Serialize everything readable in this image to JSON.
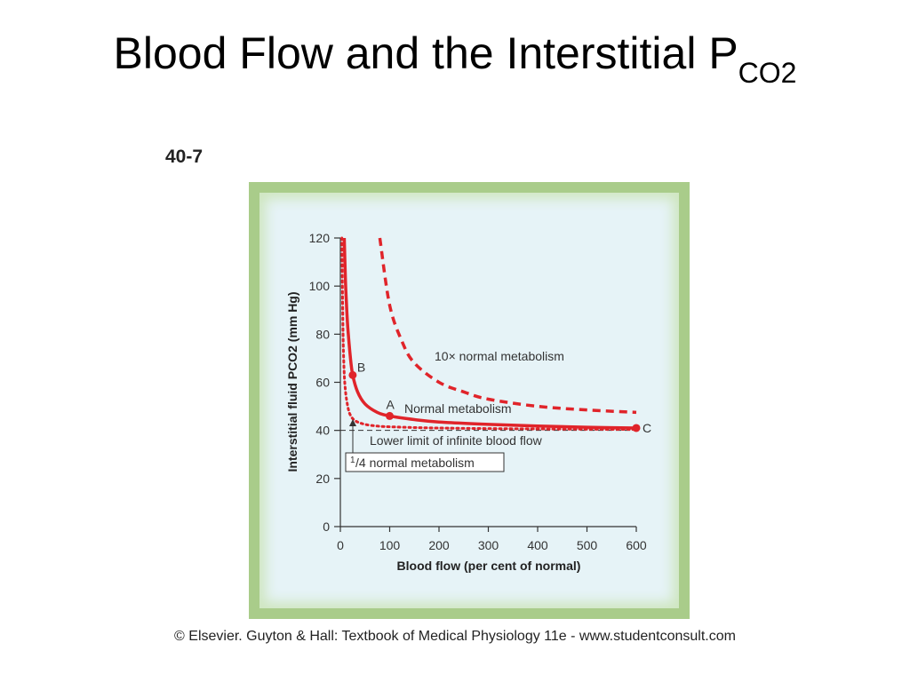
{
  "slide": {
    "title_main": "Blood Flow and the Interstitial P",
    "title_sub": "CO2",
    "figure_label": "40-7",
    "caption": "© Elsevier. Guyton & Hall: Textbook of Medical Physiology 11e - www.studentconsult.com"
  },
  "colors": {
    "curve": "#e0242a",
    "frame": "#a9cc8a",
    "plot_bg": "#e6f3f7",
    "axis": "#333333"
  },
  "chart_data": {
    "type": "line",
    "xlabel": "Blood flow (per cent of normal)",
    "ylabel": "Interstitial fluid PCO2 (mm Hg)",
    "xlim": [
      0,
      600
    ],
    "ylim": [
      0,
      120
    ],
    "xticks": [
      0,
      100,
      200,
      300,
      400,
      500,
      600
    ],
    "yticks": [
      0,
      20,
      40,
      60,
      80,
      100,
      120
    ],
    "grid": false,
    "series": [
      {
        "name": "10× normal metabolism",
        "style": "dashed",
        "x": [
          80,
          100,
          125,
          150,
          200,
          250,
          300,
          400,
          500,
          600
        ],
        "y": [
          120,
          92,
          77,
          68,
          60,
          56,
          53,
          50,
          48.5,
          47.5
        ]
      },
      {
        "name": "Normal metabolism",
        "style": "solid",
        "x": [
          8,
          10,
          12,
          15,
          20,
          25,
          35,
          50,
          75,
          100,
          150,
          200,
          300,
          400,
          500,
          600
        ],
        "y": [
          120,
          104,
          94,
          83,
          71,
          63,
          56,
          51,
          47.5,
          46,
          44.5,
          43.5,
          42.5,
          41.8,
          41.3,
          41
        ]
      },
      {
        "name": "1/4 normal metabolism",
        "style": "dotted",
        "x": [
          3,
          5,
          7,
          10,
          15,
          20,
          30,
          50,
          75,
          100,
          200,
          400,
          600
        ],
        "y": [
          120,
          86,
          68,
          57,
          50,
          46.5,
          44,
          42.5,
          41.8,
          41.5,
          41,
          40.6,
          40.4
        ]
      }
    ],
    "reference_line": {
      "label": "Lower limit of infinite blood flow",
      "y": 40
    },
    "points": [
      {
        "label": "A",
        "x": 100,
        "y": 46
      },
      {
        "label": "B",
        "x": 25,
        "y": 63
      },
      {
        "label": "C",
        "x": 600,
        "y": 41
      }
    ],
    "annotations": {
      "series_10x": "10× normal metabolism",
      "series_normal": "Normal metabolism",
      "series_quarter_sup": "1",
      "series_quarter_text": "/4 normal metabolism"
    }
  }
}
